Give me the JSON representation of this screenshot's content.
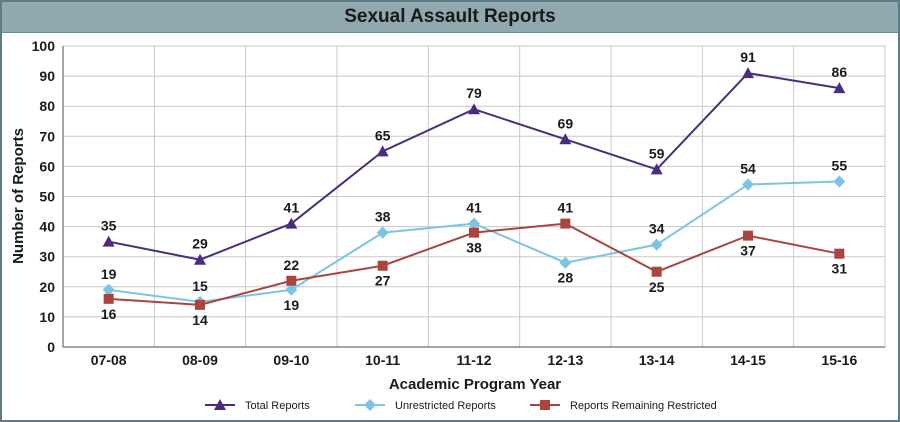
{
  "chart_data": {
    "type": "line",
    "title": "Sexual Assault Reports",
    "xlabel": "Academic Program Year",
    "ylabel": "Number of Reports",
    "categories": [
      "07-08",
      "08-09",
      "09-10",
      "10-11",
      "11-12",
      "12-13",
      "13-14",
      "14-15",
      "15-16"
    ],
    "ylim": [
      0,
      100
    ],
    "yticks": [
      0,
      10,
      20,
      30,
      40,
      50,
      60,
      70,
      80,
      90,
      100
    ],
    "grid": true,
    "legend": "bottom",
    "series": [
      {
        "name": "Total Reports",
        "color": "#4b2d7f",
        "marker": "triangle",
        "values": [
          35,
          29,
          41,
          65,
          79,
          69,
          59,
          91,
          86
        ]
      },
      {
        "name": "Unrestricted Reports",
        "color": "#7cc4e3",
        "marker": "diamond",
        "values": [
          19,
          15,
          19,
          38,
          41,
          28,
          34,
          54,
          55
        ]
      },
      {
        "name": "Reports Remaining Restricted",
        "color": "#a9443f",
        "marker": "square",
        "values": [
          16,
          14,
          22,
          27,
          38,
          41,
          25,
          37,
          31
        ]
      }
    ]
  }
}
